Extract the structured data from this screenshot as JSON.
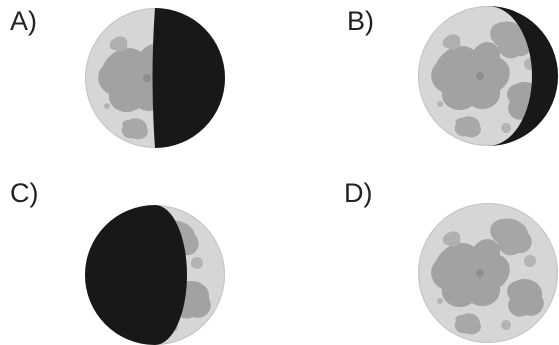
{
  "options": [
    {
      "label": "A)",
      "phase_icon": "first-quarter-moon-icon"
    },
    {
      "label": "B)",
      "phase_icon": "waxing-gibbous-moon-icon"
    },
    {
      "label": "C)",
      "phase_icon": "waxing-crescent-moon-icon"
    },
    {
      "label": "D)",
      "phase_icon": "full-moon-icon"
    }
  ],
  "colors": {
    "moon_light": "#d6d6d6",
    "maria": "#9e9e9e",
    "moon_dark": "#181818",
    "label": "#222222"
  }
}
